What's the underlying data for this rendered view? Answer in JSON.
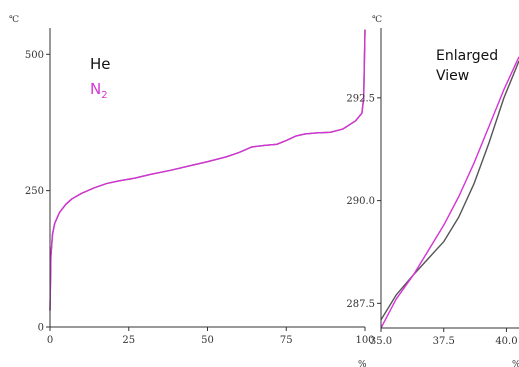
{
  "chart_data": [
    {
      "type": "line",
      "title": "",
      "xlabel": "",
      "ylabel": "",
      "y_unit": "℃",
      "x_unit": "%",
      "xlim": [
        0,
        100
      ],
      "ylim": [
        0,
        550
      ],
      "x_ticks": [
        "0",
        "25",
        "50",
        "75",
        "100"
      ],
      "y_ticks": [
        "0",
        "250",
        "500"
      ],
      "legend": {
        "position": "top-left",
        "entries": [
          "He",
          "N2"
        ]
      },
      "series": [
        {
          "name": "He",
          "color": "#555555",
          "x": [
            0,
            0.3,
            0.8,
            1.5,
            3,
            5,
            7,
            10,
            14,
            18,
            22,
            27,
            32,
            38,
            44,
            50,
            56,
            60,
            64,
            68,
            72,
            75,
            78,
            81,
            85,
            89,
            93,
            97,
            99,
            99.6,
            100
          ],
          "y": [
            30,
            130,
            170,
            190,
            210,
            225,
            235,
            245,
            255,
            263,
            268,
            273,
            280,
            287,
            295,
            303,
            312,
            320,
            330,
            333,
            335,
            342,
            350,
            354,
            356,
            357,
            363,
            378,
            392,
            420,
            545
          ]
        },
        {
          "name": "N2",
          "color": "#d633d6",
          "x": [
            0,
            0.3,
            0.8,
            1.5,
            3,
            5,
            7,
            10,
            14,
            18,
            22,
            27,
            32,
            38,
            44,
            50,
            56,
            60,
            64,
            68,
            72,
            75,
            78,
            81,
            85,
            89,
            93,
            97,
            99,
            99.6,
            100
          ],
          "y": [
            30,
            130,
            170,
            190,
            210,
            225,
            235,
            245,
            255,
            263,
            268,
            273,
            280,
            287,
            295,
            303,
            312,
            320,
            330,
            333,
            335,
            342,
            350,
            354,
            356,
            357,
            363,
            378,
            392,
            420,
            545
          ]
        }
      ]
    },
    {
      "type": "line",
      "title": "",
      "annotation": "Enlarged View",
      "xlabel": "",
      "ylabel": "",
      "y_unit": "℃",
      "x_unit": "%",
      "xlim": [
        35,
        40.5
      ],
      "ylim": [
        286.9,
        294.2
      ],
      "x_ticks": [
        "35.0",
        "37.5",
        "40.0"
      ],
      "y_ticks": [
        "287.5",
        "290.0",
        "292.5"
      ],
      "series": [
        {
          "name": "He",
          "color": "#555555",
          "x": [
            35,
            35.6,
            36.3,
            36.9,
            37.5,
            38.1,
            38.7,
            39.3,
            39.9,
            40.5
          ],
          "y": [
            287.1,
            287.7,
            288.2,
            288.6,
            289.0,
            289.6,
            290.4,
            291.4,
            292.5,
            293.4
          ]
        },
        {
          "name": "N2",
          "color": "#d633d6",
          "x": [
            35,
            35.6,
            36.3,
            36.9,
            37.5,
            38.1,
            38.7,
            39.3,
            39.9,
            40.5
          ],
          "y": [
            286.9,
            287.6,
            288.2,
            288.8,
            289.4,
            290.1,
            290.9,
            291.8,
            292.7,
            293.5
          ]
        }
      ]
    }
  ]
}
